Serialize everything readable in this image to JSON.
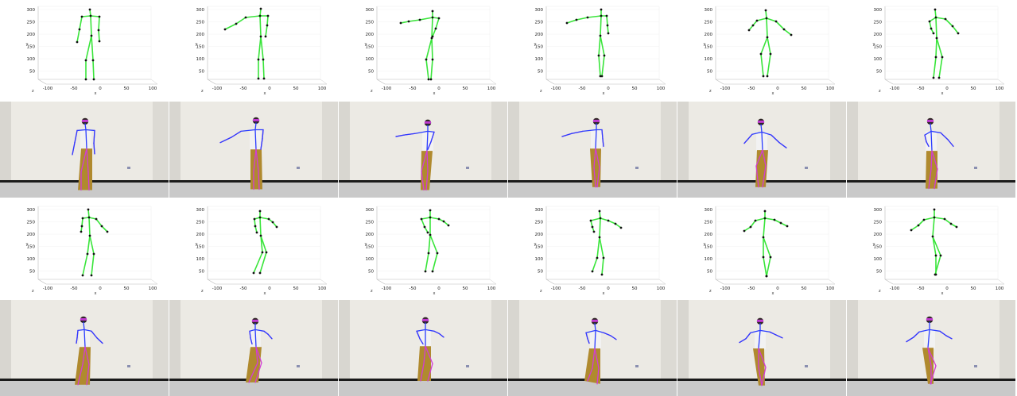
{
  "figure": {
    "y_ticks": [
      "300",
      "250",
      "200",
      "150",
      "100",
      "50"
    ],
    "x_ticks": [
      "-100",
      "-50",
      "0",
      "50",
      "100"
    ],
    "axis_letters": {
      "y": "y",
      "x": "x",
      "z": "z"
    },
    "colors": {
      "skeleton_plot": "#39e53a",
      "joint": "#111111",
      "skeleton_overlay_spine": "#2a3cff",
      "skeleton_overlay_limbs": "#d23cd6",
      "pants": "#b08a2e",
      "shirt": "#f2f2f2",
      "wall": "#eceae4",
      "floor": "#c9c9c9",
      "baseboard": "#1a1a1a"
    }
  },
  "rows": [
    {
      "kind": "skeleton-plot",
      "frames": 6
    },
    {
      "kind": "video-frame",
      "frames": 6
    },
    {
      "kind": "skeleton-plot",
      "frames": 6
    },
    {
      "kind": "video-frame",
      "frames": 6
    }
  ]
}
